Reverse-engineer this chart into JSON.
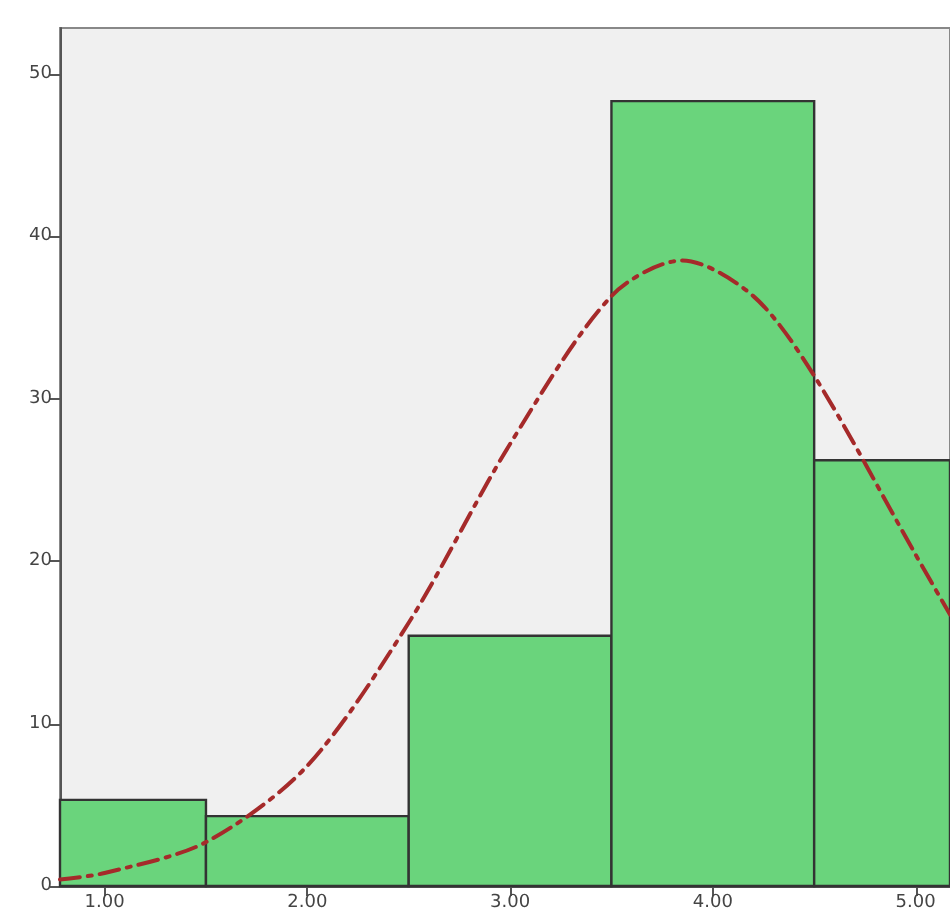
{
  "chart_data": {
    "type": "histogram",
    "bins": [
      0.78,
      1.5,
      2.5,
      3.5,
      4.5,
      5.17
    ],
    "values": [
      5.3,
      4.3,
      15.4,
      48.3,
      26.2
    ],
    "color": "#6ad47c",
    "series": [
      {
        "type": "line",
        "color": "#a52a2a",
        "line_style": "dashed",
        "marker": "none",
        "x": [
          0.78,
          1.0,
          1.5,
          2.0,
          2.5,
          3.0,
          3.5,
          3.85,
          4.2,
          4.5,
          5.0,
          5.17
        ],
        "values": [
          0.4,
          0.8,
          2.7,
          7.4,
          16.2,
          27.2,
          36.3,
          38.5,
          36.3,
          31.4,
          20.4,
          16.7
        ]
      }
    ],
    "xlim": [
      0.78,
      5.17
    ],
    "xticks": [
      {
        "value": 1,
        "label": "1.00"
      },
      {
        "value": 2,
        "label": "2.00"
      },
      {
        "value": 3,
        "label": "3.00"
      },
      {
        "value": 4,
        "label": "4.00"
      },
      {
        "value": 5,
        "label": "5.00"
      }
    ],
    "ylim": [
      0,
      52.8
    ],
    "yticks": [
      0,
      10,
      20,
      30,
      40,
      50
    ],
    "grid": false
  }
}
